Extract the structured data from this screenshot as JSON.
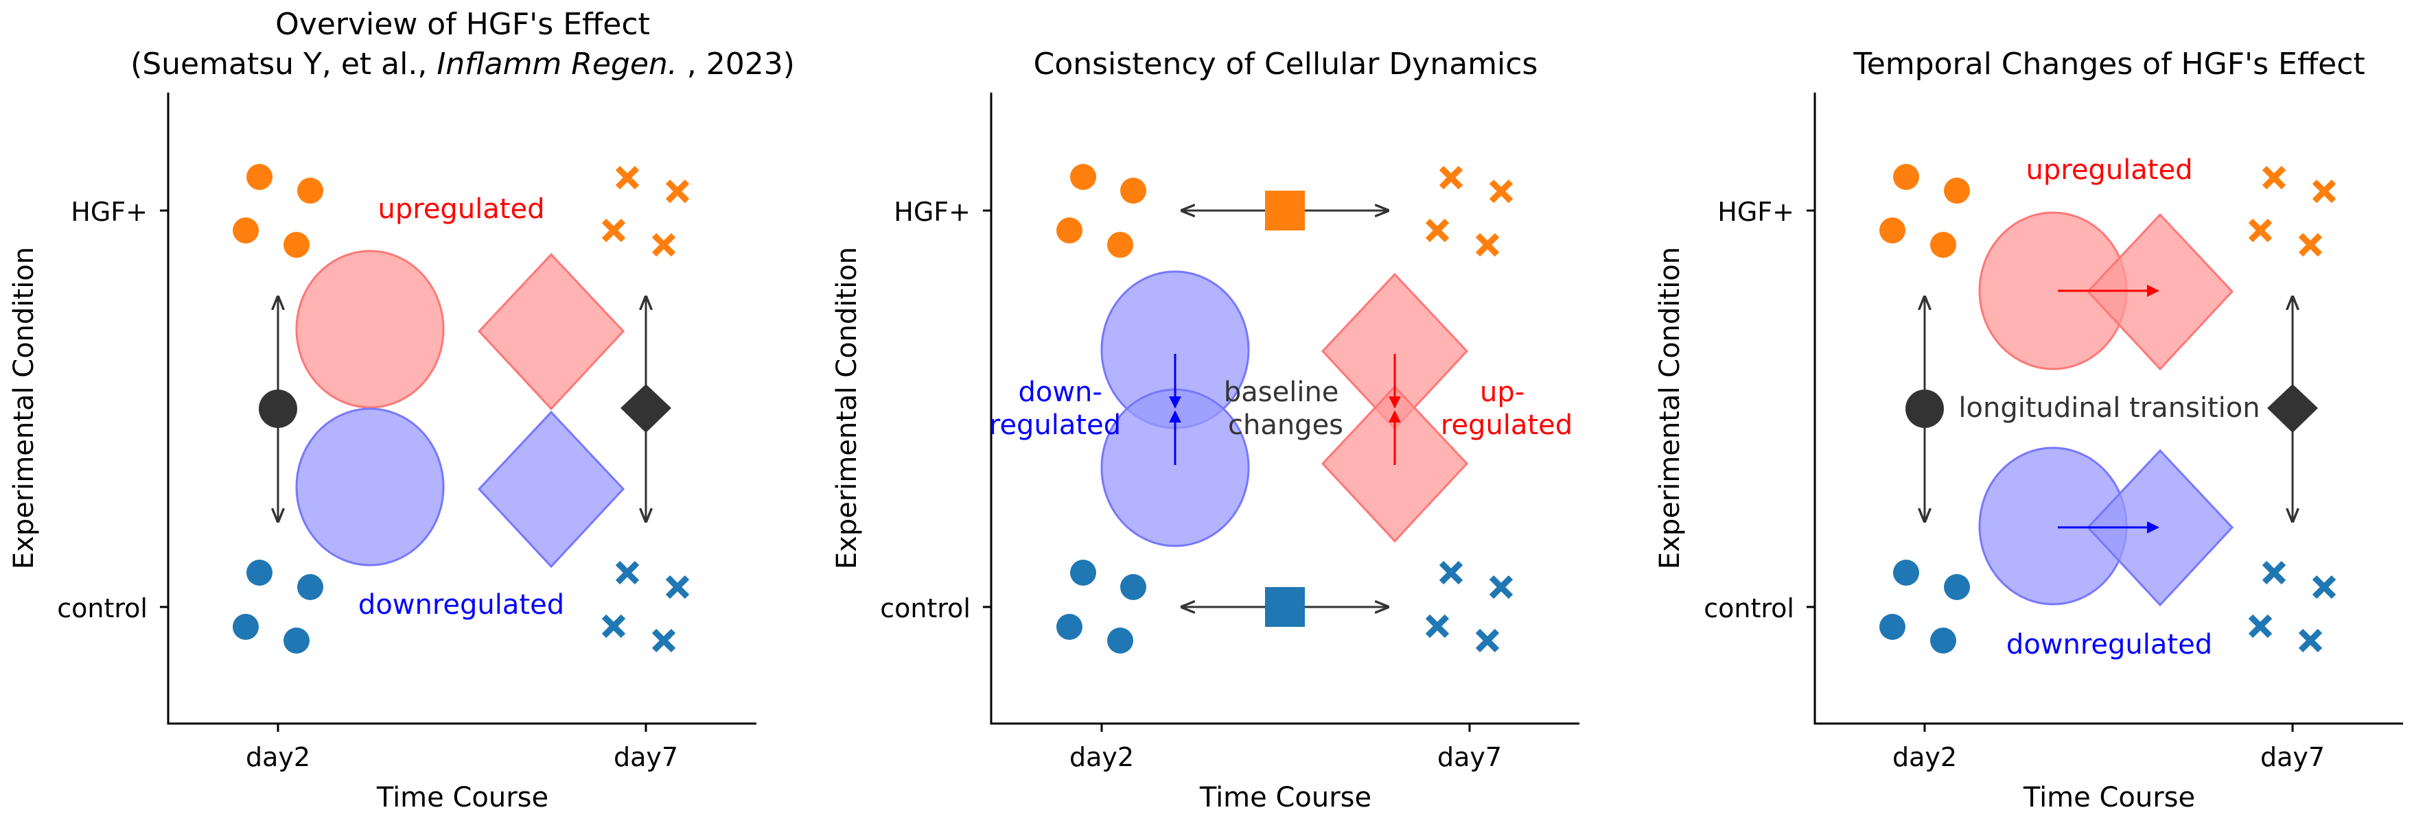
{
  "colors": {
    "orange": "#ff7f0e",
    "blue": "#1f77b4",
    "pink": "#ff9999",
    "lavender": "#9999ff",
    "dark": "#333333",
    "red_text": "#ff0000",
    "blue_text": "#0000ff"
  },
  "shared_axes": {
    "xlabel": "Time Course",
    "ylabel": "Experimental Condition",
    "x_ticks": [
      "day2",
      "day7"
    ],
    "y_ticks": [
      "control",
      "HGF+"
    ]
  },
  "panels": [
    {
      "title_line1": "Overview of HGF's Effect",
      "title_line2_pre": "(Suematsu Y, et al., ",
      "title_line2_ital": "Inflamm Regen.",
      "title_line2_post": " , 2023)",
      "label_up": "upregulated",
      "label_down": "downregulated"
    },
    {
      "title": "Consistency of Cellular Dynamics",
      "label_down_1": "down-",
      "label_down_2": "regulated",
      "label_mid_1": "baseline",
      "label_mid_2": "changes",
      "label_up_1": "up-",
      "label_up_2": "regulated"
    },
    {
      "title": "Temporal Changes of HGF's Effect",
      "label_up": "upregulated",
      "label_mid": "longitudinal transition",
      "label_down": "downregulated"
    }
  ]
}
